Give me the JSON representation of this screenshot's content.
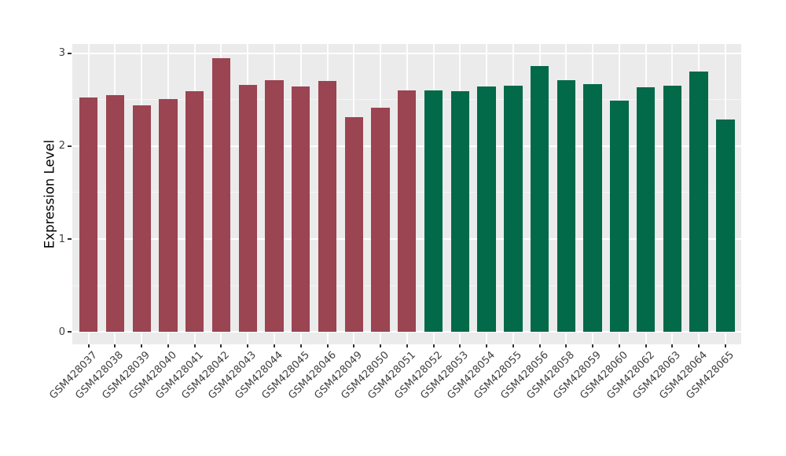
{
  "chart_data": {
    "type": "bar",
    "ylabel": "Expression Level",
    "yticks": [
      0,
      1,
      2,
      3
    ],
    "yticks_minor": [
      0.5,
      1.5,
      2.5
    ],
    "ylim": [
      -0.15,
      3.1
    ],
    "grid": true,
    "legend": false,
    "panel_background": "#EBEBEB",
    "gridline_color": "#FFFFFF",
    "tick_color": "#333333",
    "tick_label_color": "#404040",
    "axis_title_color": "#000000",
    "categories": [
      "GSM428037",
      "GSM428038",
      "GSM428039",
      "GSM428040",
      "GSM428041",
      "GSM428042",
      "GSM428043",
      "GSM428044",
      "GSM428045",
      "GSM428046",
      "GSM428049",
      "GSM428050",
      "GSM428051",
      "GSM428052",
      "GSM428053",
      "GSM428054",
      "GSM428055",
      "GSM428056",
      "GSM428058",
      "GSM428059",
      "GSM428060",
      "GSM428062",
      "GSM428063",
      "GSM428064",
      "GSM428065"
    ],
    "values": [
      2.52,
      2.55,
      2.44,
      2.51,
      2.59,
      2.95,
      2.66,
      2.71,
      2.64,
      2.7,
      2.31,
      2.41,
      2.6,
      2.6,
      2.59,
      2.64,
      2.65,
      2.86,
      2.71,
      2.67,
      2.49,
      2.63,
      2.65,
      2.8,
      2.29
    ],
    "groups": [
      "maroon",
      "maroon",
      "maroon",
      "maroon",
      "maroon",
      "maroon",
      "maroon",
      "maroon",
      "maroon",
      "maroon",
      "maroon",
      "maroon",
      "maroon",
      "green",
      "green",
      "green",
      "green",
      "green",
      "green",
      "green",
      "green",
      "green",
      "green",
      "green",
      "green"
    ],
    "group_colors": {
      "maroon": "#9B4452",
      "green": "#026949"
    }
  }
}
